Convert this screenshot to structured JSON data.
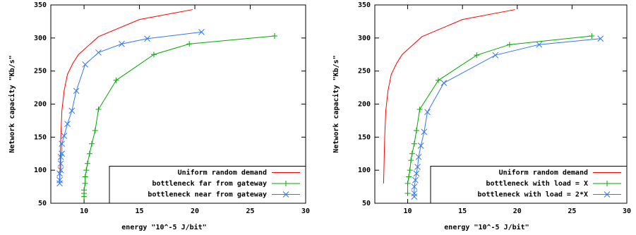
{
  "chart_data": [
    {
      "type": "line",
      "xlabel": "energy \"10^-5 J/bit\"",
      "ylabel": "Network capacity \"Kb/s\"",
      "xlim": [
        7,
        30
      ],
      "xticks": [
        10,
        15,
        20,
        25,
        30
      ],
      "ylim": [
        50,
        350
      ],
      "yticks": [
        50,
        100,
        150,
        200,
        250,
        300,
        350
      ],
      "legend": "lower right",
      "series": [
        {
          "name": "Uniform random demand",
          "color": "#ff0000",
          "x": [
            7.8,
            7.9,
            8.0,
            8.2,
            8.5,
            9.0,
            9.5,
            11.3,
            15,
            19.8
          ],
          "values": [
            80,
            150,
            190,
            220,
            245,
            262,
            275,
            302,
            328,
            343
          ]
        },
        {
          "name": "bottleneck far from gateway",
          "color": "#00aa00",
          "marker": "plus",
          "x": [
            10,
            10,
            10,
            10.1,
            10.1,
            10.2,
            10.3,
            10.5,
            10.7,
            11,
            11.3,
            12.9,
            16.3,
            19.5,
            27.2
          ],
          "values": [
            60,
            65,
            70,
            80,
            90,
            100,
            110,
            125,
            140,
            160,
            192,
            236,
            275,
            291,
            303
          ]
        },
        {
          "name": "bottleneck near from gateway",
          "color": "#3377ee",
          "marker": "cross",
          "x": [
            7.8,
            7.8,
            7.8,
            7.9,
            7.9,
            7.9,
            8.0,
            8.0,
            8.2,
            8.5,
            8.9,
            9.3,
            10.1,
            11.3,
            13.4,
            15.7,
            20.6
          ],
          "values": [
            80,
            85,
            95,
            100,
            110,
            120,
            125,
            140,
            152,
            170,
            190,
            220,
            260,
            278,
            291,
            299,
            309
          ]
        }
      ]
    },
    {
      "type": "line",
      "xlabel": "energy \"10^-5 J/bit\"",
      "ylabel": "Network capacity \"Kb/s\"",
      "xlim": [
        7,
        30
      ],
      "xticks": [
        10,
        15,
        20,
        25,
        30
      ],
      "ylim": [
        50,
        350
      ],
      "yticks": [
        50,
        100,
        150,
        200,
        250,
        300,
        350
      ],
      "legend": "lower right",
      "series": [
        {
          "name": "Uniform random demand",
          "color": "#ff0000",
          "x": [
            7.8,
            7.9,
            8.0,
            8.2,
            8.5,
            9.0,
            9.5,
            11.3,
            15,
            19.8
          ],
          "values": [
            80,
            150,
            190,
            220,
            245,
            262,
            275,
            302,
            328,
            343
          ]
        },
        {
          "name": "bottleneck with load = X",
          "color": "#00aa00",
          "marker": "plus",
          "x": [
            10,
            10,
            10.1,
            10.2,
            10.3,
            10.4,
            10.6,
            10.8,
            11.1,
            12.8,
            16.3,
            19.3,
            26.8
          ],
          "values": [
            65,
            80,
            90,
            100,
            115,
            125,
            140,
            160,
            192,
            236,
            274,
            290,
            303
          ]
        },
        {
          "name": "bottleneck with load = 2*X",
          "color": "#3377ee",
          "marker": "cross",
          "x": [
            10.6,
            10.6,
            10.6,
            10.7,
            10.8,
            10.9,
            11.0,
            11.2,
            11.5,
            11.8,
            13.3,
            18.0,
            22.0,
            27.6
          ],
          "values": [
            60,
            65,
            75,
            85,
            95,
            105,
            120,
            137,
            158,
            188,
            232,
            274,
            290,
            299
          ]
        }
      ]
    }
  ]
}
